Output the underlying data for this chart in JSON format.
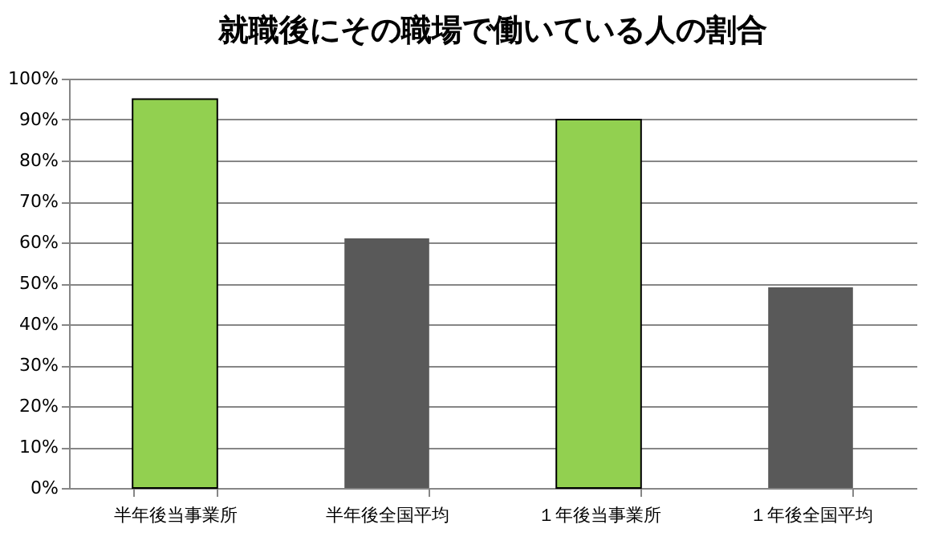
{
  "chart_data": {
    "type": "bar",
    "title": "就職後にその職場で働いている人の割合",
    "categories": [
      "半年後当事業所",
      "半年後全国平均",
      "１年後当事業所",
      "１年後全国平均"
    ],
    "values": [
      95,
      61,
      90,
      49
    ],
    "colors": [
      "#92d050",
      "#595959",
      "#92d050",
      "#595959"
    ],
    "ylim": [
      0,
      100
    ],
    "yticks": [
      {
        "value": 0,
        "label": "0%"
      },
      {
        "value": 10,
        "label": "10%"
      },
      {
        "value": 20,
        "label": "20%"
      },
      {
        "value": 30,
        "label": "30%"
      },
      {
        "value": 40,
        "label": "40%"
      },
      {
        "value": 50,
        "label": "50%"
      },
      {
        "value": 60,
        "label": "60%"
      },
      {
        "value": 70,
        "label": "70%"
      },
      {
        "value": 80,
        "label": "80%"
      },
      {
        "value": 90,
        "label": "90%"
      },
      {
        "value": 100,
        "label": "100%"
      }
    ],
    "grid": "y"
  }
}
